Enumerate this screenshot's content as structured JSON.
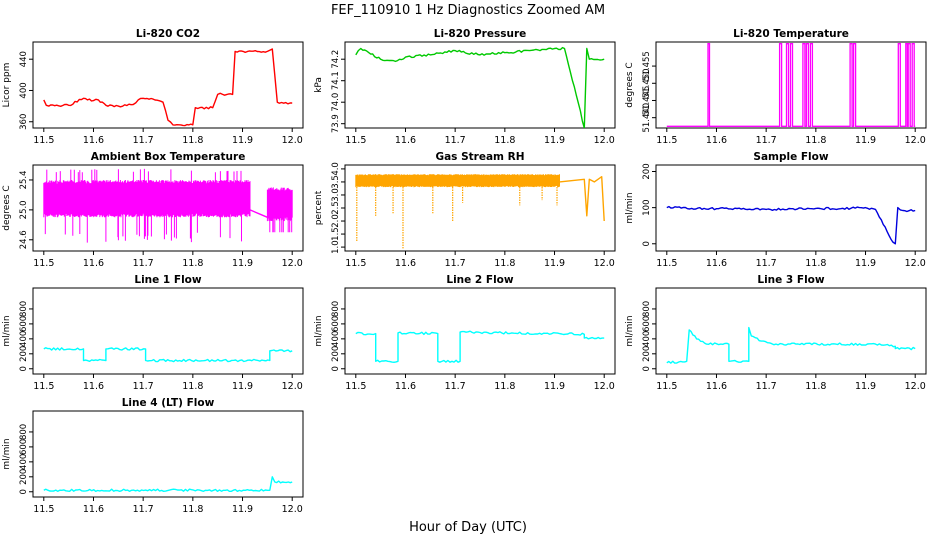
{
  "figure": {
    "title": "FEF_110910  1 Hz Diagnostics Zoomed AM",
    "xlabel": "Hour of Day (UTC)"
  },
  "chart_data": [
    {
      "type": "line",
      "title": "Li-820 CO2",
      "ylabel": "Licor ppm",
      "color": "#ff0000",
      "xlim": [
        11.5,
        12.0
      ],
      "ylim": [
        352,
        462
      ],
      "xticks": [
        "11.5",
        "11.6",
        "11.7",
        "11.8",
        "11.9",
        "12.0"
      ],
      "yticks": [
        {
          "v": 360,
          "label": "360"
        },
        {
          "v": 400,
          "label": "400"
        },
        {
          "v": 440,
          "label": "440"
        }
      ],
      "x": [
        11.5,
        11.505,
        11.51,
        11.55,
        11.58,
        11.6,
        11.61,
        11.625,
        11.65,
        11.68,
        11.69,
        11.7,
        11.72,
        11.74,
        11.75,
        11.76,
        11.8,
        11.805,
        11.81,
        11.84,
        11.85,
        11.86,
        11.88,
        11.885,
        11.95,
        11.96,
        11.97,
        12.0
      ],
      "y": [
        388,
        381,
        380,
        381,
        390,
        387,
        388,
        381,
        380,
        382,
        388,
        390,
        389,
        385,
        362,
        356,
        356,
        378,
        377,
        378,
        395,
        395,
        395,
        450,
        450,
        453,
        385,
        384
      ]
    },
    {
      "type": "line",
      "title": "Li-820 Pressure",
      "ylabel": "kPa",
      "color": "#00c800",
      "xlim": [
        11.5,
        12.0
      ],
      "ylim": [
        73.88,
        74.28
      ],
      "xticks": [
        "11.5",
        "11.6",
        "11.7",
        "11.8",
        "11.9",
        "12.0"
      ],
      "yticks": [
        {
          "v": 73.9,
          "label": "73.9"
        },
        {
          "v": 74.0,
          "label": "74.0"
        },
        {
          "v": 74.1,
          "label": "74.1"
        },
        {
          "v": 74.2,
          "label": "74.2"
        }
      ],
      "x": [
        11.5,
        11.51,
        11.55,
        11.58,
        11.6,
        11.65,
        11.7,
        11.75,
        11.8,
        11.85,
        11.9,
        11.92,
        11.96,
        11.965,
        11.97,
        12.0
      ],
      "y": [
        74.22,
        74.25,
        74.2,
        74.19,
        74.21,
        74.22,
        74.24,
        74.22,
        74.23,
        74.24,
        74.25,
        74.25,
        73.88,
        74.25,
        74.2,
        74.2
      ]
    },
    {
      "type": "line",
      "title": "Li-820 Temperature",
      "ylabel": "degrees C",
      "color": "#ff00ff",
      "xlim": [
        11.5,
        12.0
      ],
      "ylim": [
        51.437,
        51.462
      ],
      "xticks": [
        "11.5",
        "11.6",
        "11.7",
        "11.8",
        "11.9",
        "12.0"
      ],
      "yticks": [
        {
          "v": 51.44,
          "label": "51.440"
        },
        {
          "v": 51.445,
          "label": "51.445"
        },
        {
          "v": 51.45,
          "label": "51.450"
        },
        {
          "v": 51.455,
          "label": "51.455"
        }
      ],
      "baseline": 51.4375,
      "top": 51.4615,
      "spikes": [
        [
          11.583,
          11.586
        ],
        [
          11.727,
          11.731
        ],
        [
          11.741,
          11.745
        ],
        [
          11.749,
          11.753
        ],
        [
          11.774,
          11.778
        ],
        [
          11.781,
          11.785
        ],
        [
          11.789,
          11.793
        ],
        [
          11.869,
          11.873
        ],
        [
          11.876,
          11.88
        ],
        [
          11.966,
          11.97
        ],
        [
          11.981,
          11.984
        ],
        [
          11.986,
          11.99
        ],
        [
          11.994,
          11.998
        ]
      ]
    },
    {
      "type": "line",
      "title": "Ambient Box Temperature",
      "ylabel": "degrees C",
      "color": "#ff00ff",
      "xlim": [
        11.5,
        12.0
      ],
      "ylim": [
        24.45,
        25.6
      ],
      "xticks": [
        "11.5",
        "11.6",
        "11.7",
        "11.8",
        "11.9",
        "12.0"
      ],
      "yticks": [
        {
          "v": 24.6,
          "label": "24.6"
        },
        {
          "v": 25.0,
          "label": "25.0"
        },
        {
          "v": 25.4,
          "label": "25.4"
        }
      ],
      "noise": {
        "x_from": 11.5,
        "x_to": 11.915,
        "center": 25.15,
        "amp_low": 24.9,
        "amp_high": 25.4,
        "min": 24.55,
        "max": 25.55
      },
      "x": [
        11.915,
        11.95
      ],
      "y": [
        25.0,
        24.9
      ],
      "noise2": {
        "x_from": 11.95,
        "x_to": 12.0,
        "amp_low": 24.85,
        "amp_high": 25.3,
        "min": 24.7,
        "max": 25.3
      }
    },
    {
      "type": "line",
      "title": "Gas Stream RH",
      "ylabel": "percent",
      "color": "#ffa500",
      "xlim": [
        11.5,
        12.0
      ],
      "ylim": [
        0.85,
        4.15
      ],
      "xticks": [
        "11.5",
        "11.6",
        "11.7",
        "11.8",
        "11.9",
        "12.0"
      ],
      "yticks": [
        {
          "v": 1.0,
          "label": "1.0"
        },
        {
          "v": 1.5,
          "label": "1.5"
        },
        {
          "v": 2.0,
          "label": "2.0"
        },
        {
          "v": 2.5,
          "label": "2.5"
        },
        {
          "v": 3.0,
          "label": "3.0"
        },
        {
          "v": 3.5,
          "label": "3.5"
        },
        {
          "v": 4.0,
          "label": "4.0"
        }
      ],
      "noise": {
        "x_from": 11.5,
        "x_to": 11.91,
        "amp_low": 3.3,
        "amp_high": 3.8
      },
      "dips": [
        {
          "x": 11.502,
          "y": 1.2
        },
        {
          "x": 11.54,
          "y": 2.2
        },
        {
          "x": 11.575,
          "y": 2.3
        },
        {
          "x": 11.595,
          "y": 0.95
        },
        {
          "x": 11.655,
          "y": 2.3
        },
        {
          "x": 11.695,
          "y": 2.0
        },
        {
          "x": 11.715,
          "y": 2.7
        },
        {
          "x": 11.83,
          "y": 2.6
        },
        {
          "x": 11.875,
          "y": 2.8
        },
        {
          "x": 11.905,
          "y": 2.6
        }
      ],
      "x": [
        11.91,
        11.96,
        11.965,
        11.97,
        11.98,
        11.995,
        12.0
      ],
      "y": [
        3.5,
        3.6,
        2.2,
        3.6,
        3.5,
        3.7,
        2.0
      ]
    },
    {
      "type": "line",
      "title": "Sample Flow",
      "ylabel": "ml/min",
      "color": "#0000dd",
      "xlim": [
        11.5,
        12.0
      ],
      "ylim": [
        -20,
        218
      ],
      "xticks": [
        "11.5",
        "11.6",
        "11.7",
        "11.8",
        "11.9",
        "12.0"
      ],
      "yticks": [
        {
          "v": 0,
          "label": "0"
        },
        {
          "v": 100,
          "label": "100"
        },
        {
          "v": 200,
          "label": "200"
        }
      ],
      "x": [
        11.5,
        11.55,
        11.6,
        11.62,
        11.65,
        11.7,
        11.75,
        11.8,
        11.85,
        11.9,
        11.92,
        11.955,
        11.96,
        11.965,
        11.975,
        12.0
      ],
      "y": [
        100,
        98,
        97,
        99,
        96,
        95,
        97,
        98,
        97,
        100,
        95,
        5,
        0,
        100,
        92,
        92
      ]
    },
    {
      "type": "line",
      "title": "Line 1 Flow",
      "ylabel": "ml/min",
      "color": "#00ffff",
      "xlim": [
        11.5,
        12.0
      ],
      "ylim": [
        -70,
        1080
      ],
      "xticks": [
        "11.5",
        "11.6",
        "11.7",
        "11.8",
        "11.9",
        "12.0"
      ],
      "yticks": [
        {
          "v": 0,
          "label": "0"
        },
        {
          "v": 200,
          "label": "200"
        },
        {
          "v": 400,
          "label": "400"
        },
        {
          "v": 600,
          "label": "600"
        },
        {
          "v": 800,
          "label": "800"
        }
      ],
      "x": [
        11.5,
        11.58,
        11.58,
        11.625,
        11.625,
        11.705,
        11.705,
        11.955,
        11.955,
        12.0
      ],
      "y": [
        265,
        265,
        110,
        110,
        265,
        265,
        110,
        110,
        240,
        240
      ]
    },
    {
      "type": "line",
      "title": "Line 2 Flow",
      "ylabel": "ml/min",
      "color": "#00ffff",
      "xlim": [
        11.5,
        12.0
      ],
      "ylim": [
        -70,
        1080
      ],
      "xticks": [
        "11.5",
        "11.6",
        "11.7",
        "11.8",
        "11.9",
        "12.0"
      ],
      "yticks": [
        {
          "v": 0,
          "label": "0"
        },
        {
          "v": 200,
          "label": "200"
        },
        {
          "v": 400,
          "label": "400"
        },
        {
          "v": 600,
          "label": "600"
        },
        {
          "v": 800,
          "label": "800"
        }
      ],
      "x": [
        11.5,
        11.54,
        11.54,
        11.585,
        11.585,
        11.665,
        11.665,
        11.71,
        11.71,
        11.91,
        11.96,
        11.96,
        12.0
      ],
      "y": [
        470,
        470,
        100,
        100,
        480,
        470,
        100,
        100,
        490,
        470,
        460,
        410,
        410
      ]
    },
    {
      "type": "line",
      "title": "Line 3 Flow",
      "ylabel": "ml/min",
      "color": "#00ffff",
      "xlim": [
        11.5,
        12.0
      ],
      "ylim": [
        -70,
        1080
      ],
      "xticks": [
        "11.5",
        "11.6",
        "11.7",
        "11.8",
        "11.9",
        "12.0"
      ],
      "yticks": [
        {
          "v": 0,
          "label": "0"
        },
        {
          "v": 200,
          "label": "200"
        },
        {
          "v": 400,
          "label": "400"
        },
        {
          "v": 600,
          "label": "600"
        },
        {
          "v": 800,
          "label": "800"
        }
      ],
      "x": [
        11.5,
        11.54,
        11.54,
        11.545,
        11.56,
        11.58,
        11.625,
        11.625,
        11.665,
        11.665,
        11.67,
        11.69,
        11.72,
        11.92,
        11.96,
        11.96,
        12.0
      ],
      "y": [
        80,
        100,
        100,
        520,
        400,
        330,
        330,
        100,
        100,
        550,
        440,
        370,
        330,
        330,
        300,
        270,
        270
      ]
    },
    {
      "type": "line",
      "title": "Line 4 (LT) Flow",
      "ylabel": "ml/min",
      "color": "#00ffff",
      "xlim": [
        11.5,
        12.0
      ],
      "ylim": [
        -70,
        1080
      ],
      "xticks": [
        "11.5",
        "11.6",
        "11.7",
        "11.8",
        "11.9",
        "12.0"
      ],
      "yticks": [
        {
          "v": 0,
          "label": "0"
        },
        {
          "v": 200,
          "label": "200"
        },
        {
          "v": 400,
          "label": "400"
        },
        {
          "v": 600,
          "label": "600"
        },
        {
          "v": 800,
          "label": "800"
        }
      ],
      "x": [
        11.5,
        11.95,
        11.955,
        11.96,
        11.965,
        12.0
      ],
      "y": [
        20,
        20,
        20,
        200,
        130,
        130
      ]
    }
  ]
}
